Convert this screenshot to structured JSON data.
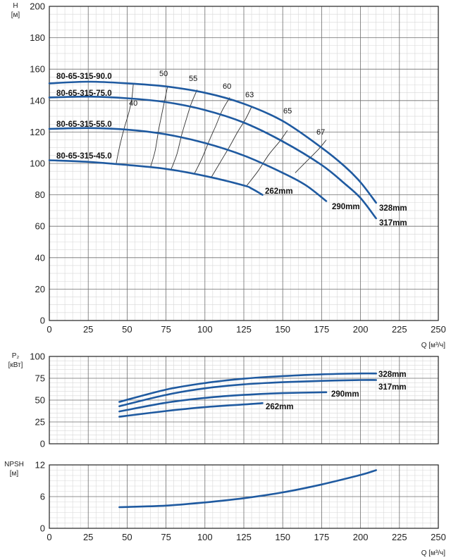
{
  "chart_data": [
    {
      "type": "line",
      "id": "head",
      "ylabel_lines": [
        "H",
        "[м]"
      ],
      "xlabel": "Q [м³/ч]",
      "xlim": [
        0,
        250
      ],
      "ylim": [
        0,
        200
      ],
      "xticks": [
        0,
        25,
        50,
        75,
        100,
        125,
        150,
        175,
        200,
        225,
        250
      ],
      "yticks": [
        0,
        20,
        40,
        60,
        80,
        100,
        120,
        140,
        160,
        180,
        200
      ],
      "grid": true,
      "series": [
        {
          "name": "80-65-315-90.0",
          "end_label": "328mm",
          "x": [
            0,
            25,
            50,
            75,
            100,
            125,
            150,
            175,
            190,
            200,
            210
          ],
          "y": [
            151,
            152,
            151,
            149,
            145,
            138,
            127,
            110,
            98,
            88,
            75
          ]
        },
        {
          "name": "80-65-315-75.0",
          "end_label": "317mm",
          "x": [
            0,
            25,
            50,
            75,
            100,
            125,
            150,
            175,
            190,
            200,
            210
          ],
          "y": [
            142,
            142.5,
            141.5,
            139,
            134,
            126,
            114,
            99,
            87,
            78,
            65
          ]
        },
        {
          "name": "80-65-315-55.0",
          "end_label": "290mm",
          "x": [
            0,
            25,
            50,
            75,
            100,
            125,
            150,
            165,
            178
          ],
          "y": [
            122,
            122.5,
            121.5,
            118.5,
            113,
            105,
            94,
            86,
            76
          ]
        },
        {
          "name": "80-65-315-45.0",
          "end_label": "262mm",
          "x": [
            0,
            25,
            50,
            75,
            100,
            125,
            130,
            137
          ],
          "y": [
            102,
            101,
            99,
            96.5,
            92,
            86,
            84,
            80
          ]
        }
      ],
      "efficiency_lines": [
        {
          "label": "40",
          "points": [
            [
              43,
              100
            ],
            [
              45,
              110
            ],
            [
              48,
              122
            ],
            [
              51,
              132
            ],
            [
              53,
              141
            ],
            [
              54,
              151
            ]
          ]
        },
        {
          "label": "50",
          "points": [
            [
              65,
              97.5
            ],
            [
              68,
              108
            ],
            [
              70,
              120
            ],
            [
              72,
              130
            ],
            [
              74,
              139.5
            ],
            [
              76,
              149
            ]
          ]
        },
        {
          "label": "55",
          "points": [
            [
              78,
              95.5
            ],
            [
              82,
              106
            ],
            [
              85,
              118
            ],
            [
              88,
              128
            ],
            [
              91,
              137.5
            ],
            [
              95,
              147
            ]
          ]
        },
        {
          "label": "60",
          "points": [
            [
              93,
              93
            ],
            [
              98,
              103
            ],
            [
              103,
              115
            ],
            [
              107,
              124
            ],
            [
              111,
              133.5
            ],
            [
              116,
              142
            ]
          ]
        },
        {
          "label": "63",
          "points": [
            [
              104,
              91
            ],
            [
              110,
              101
            ],
            [
              116,
              111
            ],
            [
              121,
              120
            ],
            [
              126,
              128
            ],
            [
              130,
              136
            ]
          ]
        },
        {
          "label": "65",
          "points": [
            [
              127,
              86
            ],
            [
              134,
              95
            ],
            [
              141,
              105.5
            ],
            [
              148,
              114
            ],
            [
              153,
              121
            ]
          ]
        },
        {
          "label": "67",
          "points": [
            [
              158,
              94
            ],
            [
              165,
              101
            ],
            [
              173,
              109
            ],
            [
              178,
              115
            ]
          ]
        }
      ]
    },
    {
      "type": "line",
      "id": "power",
      "ylabel_lines": [
        "P₂",
        "[кВт]"
      ],
      "xlim": [
        0,
        250
      ],
      "ylim": [
        0,
        100
      ],
      "yticks": [
        0,
        25,
        50,
        75,
        100
      ],
      "grid": true,
      "series": [
        {
          "end_label": "328mm",
          "x": [
            45,
            75,
            100,
            125,
            150,
            175,
            200,
            210
          ],
          "y": [
            48,
            62,
            69.5,
            74.5,
            77.5,
            79.5,
            80.5,
            80.5
          ]
        },
        {
          "end_label": "317mm",
          "x": [
            45,
            75,
            100,
            125,
            150,
            175,
            200,
            210
          ],
          "y": [
            43,
            56,
            63.5,
            68,
            70.5,
            72,
            73,
            73
          ]
        },
        {
          "end_label": "290mm",
          "x": [
            45,
            75,
            100,
            125,
            150,
            178
          ],
          "y": [
            37,
            47,
            52.5,
            56,
            58,
            59
          ]
        },
        {
          "end_label": "262mm",
          "x": [
            45,
            75,
            100,
            125,
            137
          ],
          "y": [
            31,
            37.5,
            42,
            45,
            46.5
          ]
        }
      ]
    },
    {
      "type": "line",
      "id": "npsh",
      "ylabel_lines": [
        "NPSH",
        "[м]"
      ],
      "xlabel": "Q [м³/ч]",
      "xlim": [
        0,
        250
      ],
      "ylim": [
        0,
        12
      ],
      "xticks": [
        0,
        25,
        50,
        75,
        100,
        125,
        150,
        175,
        200,
        225,
        250
      ],
      "yticks": [
        0,
        6,
        12
      ],
      "grid": true,
      "series": [
        {
          "x": [
            45,
            75,
            100,
            125,
            150,
            175,
            200,
            210
          ],
          "y": [
            4.0,
            4.3,
            4.9,
            5.7,
            6.8,
            8.3,
            10.1,
            11.0
          ]
        }
      ]
    }
  ]
}
